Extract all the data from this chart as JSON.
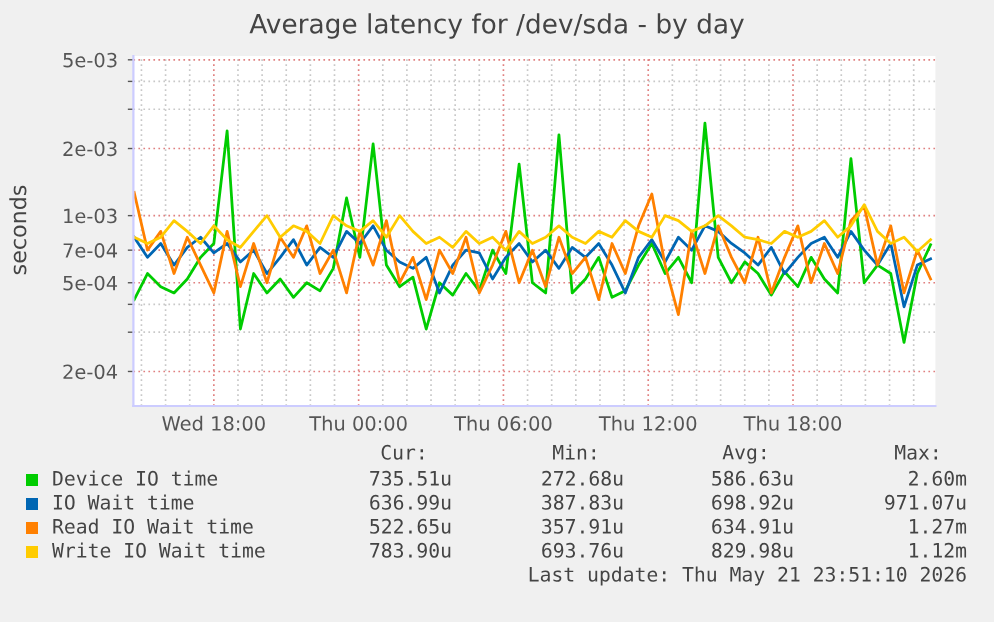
{
  "chart_data": {
    "type": "line",
    "title": "Average latency for /dev/sda - by day",
    "ylabel": "seconds",
    "x": [
      "2026-05-20T14:42",
      "2026-05-20T15:15",
      "2026-05-20T15:48",
      "2026-05-20T16:21",
      "2026-05-20T16:54",
      "2026-05-20T17:27",
      "2026-05-20T18:00",
      "2026-05-20T18:33",
      "2026-05-20T19:06",
      "2026-05-20T19:39",
      "2026-05-20T20:12",
      "2026-05-20T20:45",
      "2026-05-20T21:18",
      "2026-05-20T21:51",
      "2026-05-20T22:24",
      "2026-05-20T22:57",
      "2026-05-20T23:30",
      "2026-05-21T00:03",
      "2026-05-21T00:36",
      "2026-05-21T01:09",
      "2026-05-21T01:42",
      "2026-05-21T02:15",
      "2026-05-21T02:48",
      "2026-05-21T03:21",
      "2026-05-21T03:54",
      "2026-05-21T04:27",
      "2026-05-21T05:00",
      "2026-05-21T05:33",
      "2026-05-21T06:06",
      "2026-05-21T06:39",
      "2026-05-21T07:12",
      "2026-05-21T07:45",
      "2026-05-21T08:18",
      "2026-05-21T08:51",
      "2026-05-21T09:24",
      "2026-05-21T09:57",
      "2026-05-21T10:30",
      "2026-05-21T11:03",
      "2026-05-21T11:36",
      "2026-05-21T12:09",
      "2026-05-21T12:42",
      "2026-05-21T13:15",
      "2026-05-21T13:48",
      "2026-05-21T14:21",
      "2026-05-21T14:54",
      "2026-05-21T15:27",
      "2026-05-21T16:00",
      "2026-05-21T16:33",
      "2026-05-21T17:06",
      "2026-05-21T17:39",
      "2026-05-21T18:12",
      "2026-05-21T18:45",
      "2026-05-21T19:18",
      "2026-05-21T19:51",
      "2026-05-21T20:24",
      "2026-05-21T20:57",
      "2026-05-21T21:30",
      "2026-05-21T22:03",
      "2026-05-21T22:36",
      "2026-05-21T23:09",
      "2026-05-21T23:42"
    ],
    "series": [
      {
        "name": "Device IO time",
        "color": "#00cc00",
        "values": [
          0.00042,
          0.00055,
          0.00048,
          0.00045,
          0.00052,
          0.00065,
          0.00075,
          0.0024,
          0.00031,
          0.00055,
          0.00045,
          0.00052,
          0.00043,
          0.0005,
          0.00046,
          0.00058,
          0.0012,
          0.00065,
          0.0021,
          0.0006,
          0.00048,
          0.00053,
          0.00031,
          0.0005,
          0.00044,
          0.00055,
          0.00046,
          0.0007,
          0.00055,
          0.0017,
          0.0005,
          0.00045,
          0.0023,
          0.00045,
          0.00052,
          0.00065,
          0.00043,
          0.00046,
          0.0006,
          0.00075,
          0.00055,
          0.00065,
          0.0005,
          0.0026,
          0.00065,
          0.0005,
          0.00062,
          0.00055,
          0.00044,
          0.00056,
          0.00048,
          0.00065,
          0.00052,
          0.00045,
          0.0018,
          0.0005,
          0.0006,
          0.00055,
          0.00027,
          0.00055,
          0.00074
        ]
      },
      {
        "name": "IO Wait time",
        "color": "#0066b3",
        "values": [
          0.0008,
          0.00065,
          0.00075,
          0.0006,
          0.00072,
          0.0008,
          0.00068,
          0.00075,
          0.00062,
          0.0007,
          0.00055,
          0.00065,
          0.00078,
          0.0006,
          0.00072,
          0.00065,
          0.00085,
          0.00075,
          0.0009,
          0.0007,
          0.00062,
          0.00058,
          0.00065,
          0.00045,
          0.0006,
          0.0007,
          0.00068,
          0.00052,
          0.00065,
          0.00075,
          0.00062,
          0.0007,
          0.00058,
          0.00072,
          0.00065,
          0.00075,
          0.0006,
          0.00045,
          0.00065,
          0.00078,
          0.00062,
          0.0008,
          0.0007,
          0.0009,
          0.00085,
          0.00075,
          0.00068,
          0.0006,
          0.00072,
          0.00055,
          0.00065,
          0.00075,
          0.0008,
          0.00065,
          0.00085,
          0.0007,
          0.0006,
          0.00075,
          0.00039,
          0.0006,
          0.00064
        ]
      },
      {
        "name": "Read IO Wait time",
        "color": "#ff8000",
        "values": [
          0.00127,
          0.0007,
          0.00085,
          0.00055,
          0.0008,
          0.0006,
          0.00045,
          0.00085,
          0.00048,
          0.00075,
          0.0005,
          0.0008,
          0.00065,
          0.0009,
          0.00055,
          0.0007,
          0.00045,
          0.00085,
          0.0006,
          0.00095,
          0.0005,
          0.00065,
          0.00042,
          0.0007,
          0.00055,
          0.0008,
          0.00045,
          0.0006,
          0.00085,
          0.0005,
          0.0007,
          0.00048,
          0.0008,
          0.00055,
          0.00065,
          0.00042,
          0.00075,
          0.00055,
          0.0009,
          0.00125,
          0.0006,
          0.00036,
          0.00085,
          0.00055,
          0.0009,
          0.00065,
          0.0005,
          0.0008,
          0.00045,
          0.00065,
          0.0009,
          0.0005,
          0.00075,
          0.00055,
          0.00095,
          0.0011,
          0.0006,
          0.0009,
          0.00045,
          0.0007,
          0.00052
        ]
      },
      {
        "name": "Write IO Wait time",
        "color": "#ffcc00",
        "values": [
          0.0008,
          0.00075,
          0.0008,
          0.00095,
          0.00085,
          0.00075,
          0.0009,
          0.00078,
          0.00072,
          0.00085,
          0.001,
          0.0008,
          0.0009,
          0.00085,
          0.00075,
          0.001,
          0.0009,
          0.00085,
          0.00095,
          0.0008,
          0.001,
          0.00085,
          0.00075,
          0.0008,
          0.00072,
          0.00085,
          0.00075,
          0.0008,
          0.0007,
          0.00085,
          0.00075,
          0.0008,
          0.0009,
          0.0008,
          0.00075,
          0.00085,
          0.0008,
          0.00095,
          0.00085,
          0.0008,
          0.001,
          0.00095,
          0.00085,
          0.0009,
          0.001,
          0.0009,
          0.0008,
          0.00078,
          0.00075,
          0.00085,
          0.0008,
          0.00085,
          0.00095,
          0.0008,
          0.0009,
          0.00112,
          0.00085,
          0.00075,
          0.0008,
          0.00069,
          0.00078
        ]
      }
    ],
    "log": "y",
    "ylim": [
      0.00014,
      0.0052
    ],
    "yticks": [
      {
        "value": 0.005,
        "label": "5e-03"
      },
      {
        "value": 0.004,
        "label": null
      },
      {
        "value": 0.003,
        "label": null
      },
      {
        "value": 0.002,
        "label": "2e-03"
      },
      {
        "value": 0.001,
        "label": "1e-03"
      },
      {
        "value": 0.0007,
        "label": "7e-04"
      },
      {
        "value": 0.0005,
        "label": "5e-04"
      },
      {
        "value": 0.0004,
        "label": null
      },
      {
        "value": 0.0003,
        "label": null
      },
      {
        "value": 0.0002,
        "label": "2e-04"
      }
    ],
    "xlim": [
      "2026-05-20T14:40",
      "2026-05-21T23:54"
    ],
    "xticks": [
      {
        "value": "2026-05-20T15:00",
        "label": null
      },
      {
        "value": "2026-05-20T16:00",
        "label": null
      },
      {
        "value": "2026-05-20T17:00",
        "label": null
      },
      {
        "value": "2026-05-20T18:00",
        "label": "Wed 18:00"
      },
      {
        "value": "2026-05-20T19:00",
        "label": null
      },
      {
        "value": "2026-05-20T20:00",
        "label": null
      },
      {
        "value": "2026-05-20T21:00",
        "label": null
      },
      {
        "value": "2026-05-20T22:00",
        "label": null
      },
      {
        "value": "2026-05-20T23:00",
        "label": null
      },
      {
        "value": "2026-05-21T00:00",
        "label": "Thu 00:00"
      },
      {
        "value": "2026-05-21T01:00",
        "label": null
      },
      {
        "value": "2026-05-21T02:00",
        "label": null
      },
      {
        "value": "2026-05-21T03:00",
        "label": null
      },
      {
        "value": "2026-05-21T04:00",
        "label": null
      },
      {
        "value": "2026-05-21T05:00",
        "label": null
      },
      {
        "value": "2026-05-21T06:00",
        "label": "Thu 06:00"
      },
      {
        "value": "2026-05-21T07:00",
        "label": null
      },
      {
        "value": "2026-05-21T08:00",
        "label": null
      },
      {
        "value": "2026-05-21T09:00",
        "label": null
      },
      {
        "value": "2026-05-21T10:00",
        "label": null
      },
      {
        "value": "2026-05-21T11:00",
        "label": null
      },
      {
        "value": "2026-05-21T12:00",
        "label": "Thu 12:00"
      },
      {
        "value": "2026-05-21T13:00",
        "label": null
      },
      {
        "value": "2026-05-21T14:00",
        "label": null
      },
      {
        "value": "2026-05-21T15:00",
        "label": null
      },
      {
        "value": "2026-05-21T16:00",
        "label": null
      },
      {
        "value": "2026-05-21T17:00",
        "label": null
      },
      {
        "value": "2026-05-21T18:00",
        "label": "Thu 18:00"
      },
      {
        "value": "2026-05-21T19:00",
        "label": null
      },
      {
        "value": "2026-05-21T20:00",
        "label": null
      },
      {
        "value": "2026-05-21T21:00",
        "label": null
      },
      {
        "value": "2026-05-21T22:00",
        "label": null
      },
      {
        "value": "2026-05-21T23:00",
        "label": null
      }
    ],
    "grid": true,
    "legend": "bottom",
    "line_style": "solid",
    "marker": "none",
    "annotations": [
      "Cur:",
      "Min:",
      "Avg:",
      "Max:",
      "735.51u",
      "272.68u",
      "586.63u",
      "2.60m",
      "636.99u",
      "387.83u",
      "698.92u",
      "971.07u",
      "522.65u",
      "357.91u",
      "634.91u",
      "1.27m",
      "783.90u",
      "693.76u",
      "829.98u",
      "1.12m",
      "Last update: Thu May 21 23:51:10 2026"
    ]
  }
}
